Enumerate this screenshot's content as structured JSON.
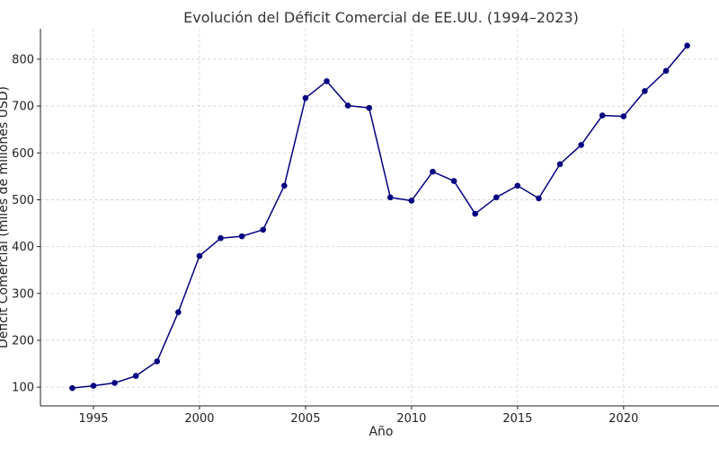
{
  "chart_data": {
    "type": "line",
    "title": "Evolución del Déficit Comercial de EE.UU. (1994–2023)",
    "xlabel": "Año",
    "ylabel": "Déficit Comercial (miles de millones USD)",
    "xlim": [
      1992.5,
      2024.5
    ],
    "ylim": [
      60,
      865
    ],
    "xticks": [
      1995,
      2000,
      2005,
      2010,
      2015,
      2020
    ],
    "yticks": [
      100,
      200,
      300,
      400,
      500,
      600,
      700,
      800
    ],
    "grid": true,
    "line_color": "#000080",
    "series": [
      {
        "x": [
          1994,
          1995,
          1996,
          1997,
          1998,
          1999,
          2000,
          2001,
          2002,
          2003,
          2004,
          2005,
          2006,
          2007,
          2008,
          2009,
          2010,
          2011,
          2012,
          2013,
          2014,
          2015,
          2016,
          2017,
          2018,
          2019,
          2020,
          2021,
          2022,
          2023
        ],
        "y": [
          98,
          103,
          109,
          124,
          155,
          260,
          380,
          418,
          422,
          436,
          530,
          717,
          753,
          701,
          696,
          505,
          498,
          560,
          540,
          470,
          505,
          530,
          503,
          576,
          617,
          680,
          678,
          732,
          775,
          829
        ]
      }
    ]
  }
}
